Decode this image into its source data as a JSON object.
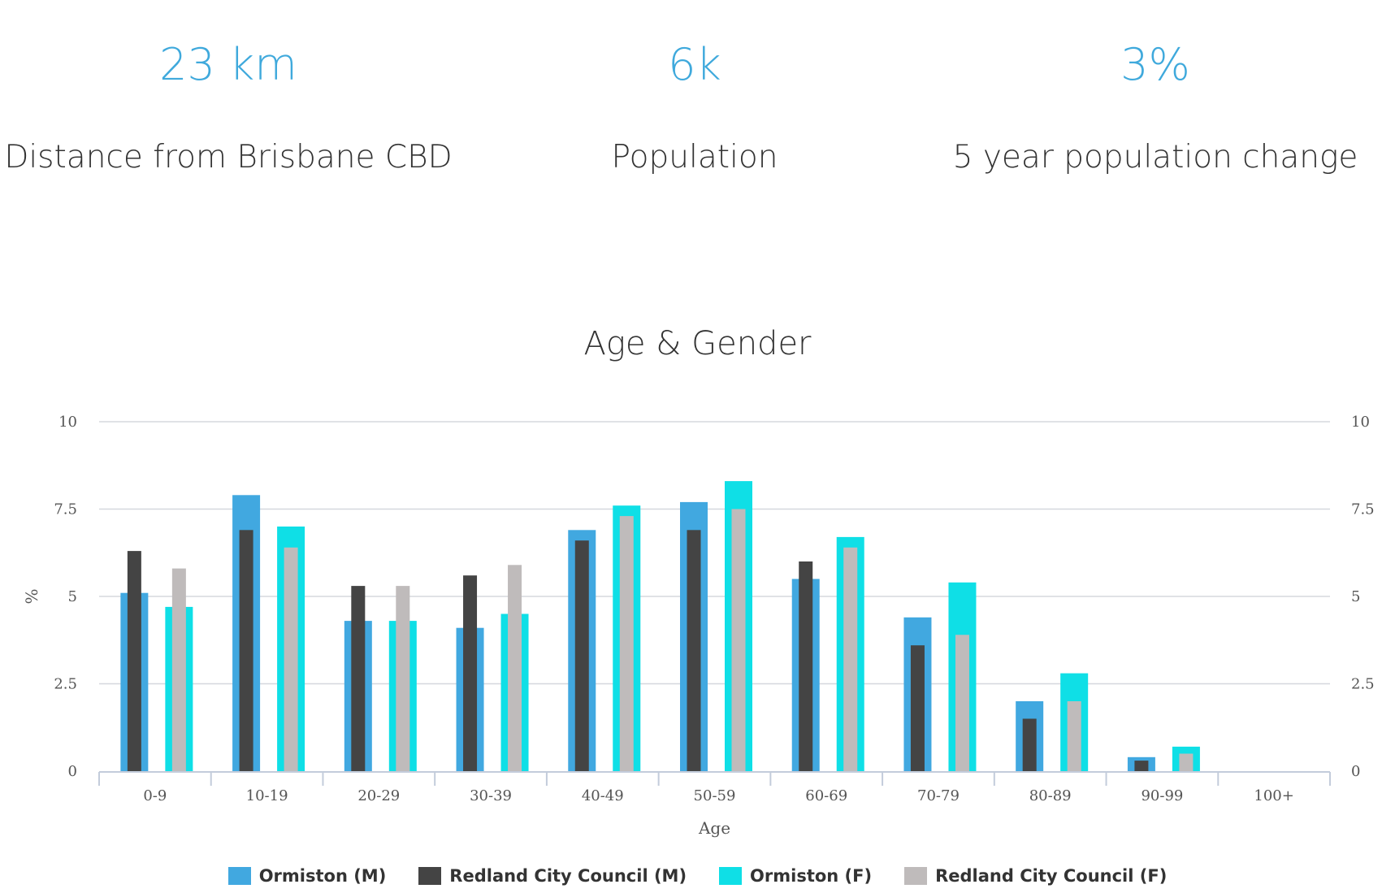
{
  "stats": [
    {
      "value": "23 km",
      "label": "Distance from Brisbane CBD"
    },
    {
      "value": "6k",
      "label": "Population"
    },
    {
      "value": "3%",
      "label": "5 year population change"
    }
  ],
  "chart_data": {
    "type": "bar",
    "title": "Age & Gender",
    "xlabel": "Age",
    "ylabel": "%",
    "ylim": [
      0,
      10
    ],
    "yticks": [
      "0",
      "2.5",
      "5",
      "7.5",
      "10"
    ],
    "categories": [
      "0-9",
      "10-19",
      "20-29",
      "30-39",
      "40-49",
      "50-59",
      "60-69",
      "70-79",
      "80-89",
      "90-99",
      "100+"
    ],
    "series": [
      {
        "name": "Ormiston (M)",
        "color": "#41a8e0",
        "values": [
          5.1,
          7.9,
          4.3,
          4.1,
          6.9,
          7.7,
          5.5,
          4.4,
          2.0,
          0.4,
          0
        ]
      },
      {
        "name": "Redland City Council (M)",
        "color": "#444444",
        "values": [
          6.3,
          6.9,
          5.3,
          5.6,
          6.6,
          6.9,
          6.0,
          3.6,
          1.5,
          0.3,
          0
        ]
      },
      {
        "name": "Ormiston (F)",
        "color": "#0fdfe6",
        "values": [
          4.7,
          7.0,
          4.3,
          4.5,
          7.6,
          8.3,
          6.7,
          5.4,
          2.8,
          0.7,
          0
        ]
      },
      {
        "name": "Redland City Council (F)",
        "color": "#bfbbbb",
        "values": [
          5.8,
          6.4,
          5.3,
          5.9,
          7.3,
          7.5,
          6.4,
          3.9,
          2.0,
          0.5,
          0
        ]
      }
    ]
  }
}
